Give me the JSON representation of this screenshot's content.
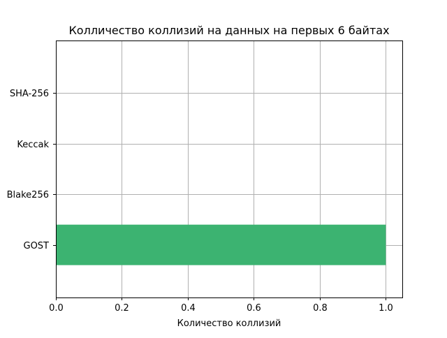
{
  "chart_data": {
    "type": "bar",
    "orientation": "horizontal",
    "title": "Колличество коллизий на данных на первых 6 байтах",
    "xlabel": "Количество коллизий",
    "ylabel": "",
    "categories": [
      "GOST",
      "Blake256",
      "Keccak",
      "SHA-256"
    ],
    "values": [
      1,
      0,
      0,
      0
    ],
    "xlim": [
      0,
      1.05
    ],
    "xticks": [
      "0.0",
      "0.2",
      "0.4",
      "0.6",
      "0.8",
      "1.0"
    ],
    "grid": true,
    "bar_color": "#3cb371",
    "grid_color": "#b0b0b0"
  }
}
